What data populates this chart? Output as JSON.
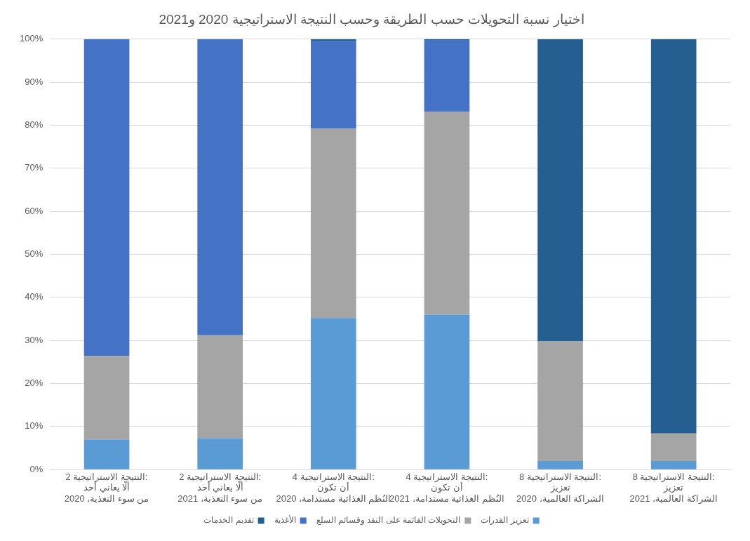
{
  "chart_data": {
    "type": "bar",
    "stacked": true,
    "title": "اختيار نسبة التحويلات حسب الطريقة وحسب النتيجة الاستراتيجية 2020 و2021",
    "categories": [
      "النتيجة الاستراتيجية 2:\nألّا يعاني أحد\nمن سوء التغذية، 2020",
      "النتيجة الاستراتيجية 2:\nألّا يعاني أحد\nمن سوء التغذية، 2021",
      "النتيجة الاستراتيجية 4:\nأن تكون\nالنُظم الغذائية مستدامة، 2020",
      "النتيجة الاستراتيجية 4:\nأن تكون\nالنُظم الغذائية مستدامة، 2021",
      "النتيجة الاستراتيجية 8:\nتعزيز\nالشراكة العالمية، 2020",
      "النتيجة الاستراتيجية 8:\nتعزيز\nالشراكة العالمية، 2021"
    ],
    "series": [
      {
        "name": "تعزيز القدرات",
        "color": "#5b9bd5",
        "values": [
          7.0,
          7.3,
          35.2,
          36.0,
          2.0,
          2.0
        ]
      },
      {
        "name": "التحويلات القائمة على النقد وقسائم السلع",
        "color": "#a5a5a5",
        "values": [
          19.4,
          23.9,
          44.0,
          47.1,
          27.8,
          6.4
        ]
      },
      {
        "name": "الأغذية",
        "color": "#4472c4",
        "values": [
          73.6,
          68.8,
          20.3,
          16.7,
          0,
          0
        ]
      },
      {
        "name": "تقديم الخدمات",
        "color": "#255e91",
        "values": [
          0,
          0,
          0.5,
          0.2,
          70.2,
          91.6
        ]
      }
    ],
    "ylim": [
      0,
      100
    ],
    "yticks": [
      {
        "value": 0,
        "label": "0%"
      },
      {
        "value": 10,
        "label": "10%"
      },
      {
        "value": 20,
        "label": "20%"
      },
      {
        "value": 30,
        "label": "30%"
      },
      {
        "value": 40,
        "label": "40%"
      },
      {
        "value": 50,
        "label": "50%"
      },
      {
        "value": 60,
        "label": "60%"
      },
      {
        "value": 70,
        "label": "70%"
      },
      {
        "value": 80,
        "label": "80%"
      },
      {
        "value": 90,
        "label": "90%"
      },
      {
        "value": 100,
        "label": "100%"
      }
    ],
    "grid": "y",
    "legend": "bottom"
  }
}
